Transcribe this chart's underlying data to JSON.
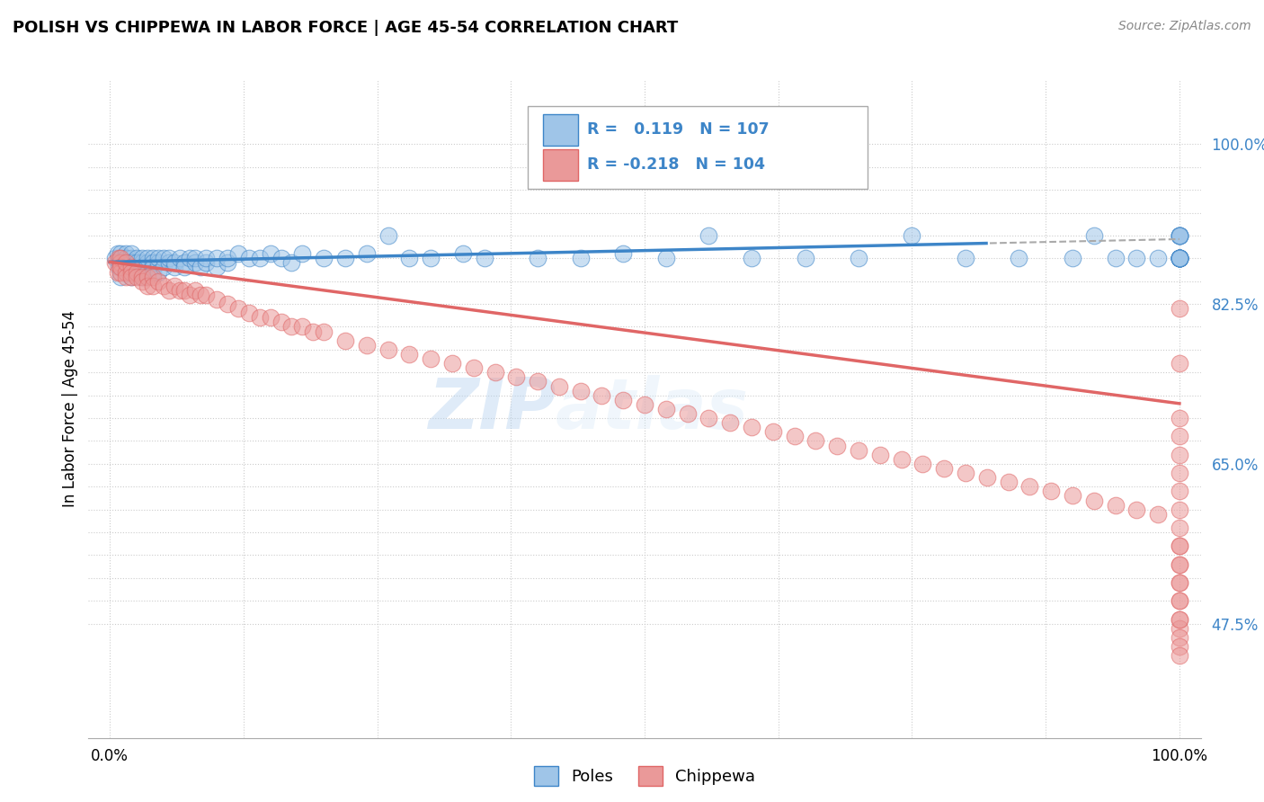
{
  "title": "POLISH VS CHIPPEWA IN LABOR FORCE | AGE 45-54 CORRELATION CHART",
  "source": "Source: ZipAtlas.com",
  "ylabel": "In Labor Force | Age 45-54",
  "xlim": [
    -0.02,
    1.02
  ],
  "ylim": [
    0.35,
    1.07
  ],
  "ytick_positions_right": [
    0.475,
    0.65,
    0.825,
    1.0
  ],
  "ytick_labels_right": [
    "47.5%",
    "65.0%",
    "82.5%",
    "100.0%"
  ],
  "poles_color": "#9fc5e8",
  "chippewa_color": "#ea9999",
  "poles_line_color": "#3d85c8",
  "chippewa_line_color": "#e06666",
  "poles_R": 0.119,
  "poles_N": 107,
  "chippewa_R": -0.218,
  "chippewa_N": 104,
  "watermark_zip": "ZIP",
  "watermark_atlas": "atlas",
  "poles_x": [
    0.005,
    0.007,
    0.008,
    0.009,
    0.01,
    0.01,
    0.01,
    0.01,
    0.01,
    0.015,
    0.015,
    0.015,
    0.015,
    0.015,
    0.015,
    0.02,
    0.02,
    0.02,
    0.02,
    0.02,
    0.02,
    0.02,
    0.025,
    0.025,
    0.025,
    0.025,
    0.03,
    0.03,
    0.03,
    0.03,
    0.03,
    0.035,
    0.035,
    0.035,
    0.04,
    0.04,
    0.04,
    0.04,
    0.045,
    0.045,
    0.045,
    0.05,
    0.05,
    0.055,
    0.055,
    0.06,
    0.06,
    0.065,
    0.07,
    0.07,
    0.075,
    0.08,
    0.08,
    0.085,
    0.09,
    0.09,
    0.1,
    0.1,
    0.11,
    0.11,
    0.12,
    0.13,
    0.14,
    0.15,
    0.16,
    0.17,
    0.18,
    0.2,
    0.22,
    0.24,
    0.26,
    0.28,
    0.3,
    0.33,
    0.35,
    0.4,
    0.44,
    0.48,
    0.52,
    0.56,
    0.6,
    0.65,
    0.7,
    0.75,
    0.8,
    0.85,
    0.9,
    0.92,
    0.94,
    0.96,
    0.98,
    1.0,
    1.0,
    1.0,
    1.0,
    1.0,
    1.0,
    1.0,
    1.0,
    1.0,
    1.0,
    1.0,
    1.0,
    1.0,
    1.0,
    1.0,
    1.0
  ],
  "poles_y": [
    0.875,
    0.88,
    0.865,
    0.87,
    0.875,
    0.88,
    0.87,
    0.865,
    0.855,
    0.875,
    0.87,
    0.865,
    0.88,
    0.875,
    0.86,
    0.875,
    0.88,
    0.87,
    0.865,
    0.86,
    0.855,
    0.87,
    0.875,
    0.87,
    0.865,
    0.86,
    0.87,
    0.875,
    0.86,
    0.855,
    0.865,
    0.87,
    0.875,
    0.86,
    0.875,
    0.87,
    0.865,
    0.86,
    0.87,
    0.875,
    0.86,
    0.875,
    0.865,
    0.87,
    0.875,
    0.865,
    0.87,
    0.875,
    0.87,
    0.865,
    0.875,
    0.87,
    0.875,
    0.865,
    0.87,
    0.875,
    0.865,
    0.875,
    0.87,
    0.875,
    0.88,
    0.875,
    0.875,
    0.88,
    0.875,
    0.87,
    0.88,
    0.875,
    0.875,
    0.88,
    0.9,
    0.875,
    0.875,
    0.88,
    0.875,
    0.875,
    0.875,
    0.88,
    0.875,
    0.9,
    0.875,
    0.875,
    0.875,
    0.9,
    0.875,
    0.875,
    0.875,
    0.9,
    0.875,
    0.875,
    0.875,
    0.875,
    0.9,
    0.875,
    0.9,
    0.875,
    0.875,
    0.9,
    0.875,
    0.875,
    0.9,
    0.875,
    0.875,
    0.875,
    0.9,
    0.875,
    0.875
  ],
  "chippewa_x": [
    0.005,
    0.007,
    0.008,
    0.01,
    0.01,
    0.01,
    0.01,
    0.015,
    0.015,
    0.015,
    0.02,
    0.02,
    0.02,
    0.025,
    0.025,
    0.03,
    0.03,
    0.035,
    0.035,
    0.04,
    0.04,
    0.045,
    0.05,
    0.055,
    0.06,
    0.065,
    0.07,
    0.075,
    0.08,
    0.085,
    0.09,
    0.1,
    0.11,
    0.12,
    0.13,
    0.14,
    0.15,
    0.16,
    0.17,
    0.18,
    0.19,
    0.2,
    0.22,
    0.24,
    0.26,
    0.28,
    0.3,
    0.32,
    0.34,
    0.36,
    0.38,
    0.4,
    0.42,
    0.44,
    0.46,
    0.48,
    0.5,
    0.52,
    0.54,
    0.56,
    0.58,
    0.6,
    0.62,
    0.64,
    0.66,
    0.68,
    0.7,
    0.72,
    0.74,
    0.76,
    0.78,
    0.8,
    0.82,
    0.84,
    0.86,
    0.88,
    0.9,
    0.92,
    0.94,
    0.96,
    0.98,
    1.0,
    1.0,
    1.0,
    1.0,
    1.0,
    1.0,
    1.0,
    1.0,
    1.0,
    1.0,
    1.0,
    1.0,
    1.0,
    1.0,
    1.0,
    1.0,
    1.0,
    1.0,
    1.0,
    1.0,
    1.0,
    1.0,
    1.0
  ],
  "chippewa_y": [
    0.87,
    0.86,
    0.875,
    0.87,
    0.86,
    0.875,
    0.865,
    0.86,
    0.87,
    0.855,
    0.865,
    0.86,
    0.855,
    0.86,
    0.855,
    0.855,
    0.85,
    0.855,
    0.845,
    0.855,
    0.845,
    0.85,
    0.845,
    0.84,
    0.845,
    0.84,
    0.84,
    0.835,
    0.84,
    0.835,
    0.835,
    0.83,
    0.825,
    0.82,
    0.815,
    0.81,
    0.81,
    0.805,
    0.8,
    0.8,
    0.795,
    0.795,
    0.785,
    0.78,
    0.775,
    0.77,
    0.765,
    0.76,
    0.755,
    0.75,
    0.745,
    0.74,
    0.735,
    0.73,
    0.725,
    0.72,
    0.715,
    0.71,
    0.705,
    0.7,
    0.695,
    0.69,
    0.685,
    0.68,
    0.675,
    0.67,
    0.665,
    0.66,
    0.655,
    0.65,
    0.645,
    0.64,
    0.635,
    0.63,
    0.625,
    0.62,
    0.615,
    0.61,
    0.605,
    0.6,
    0.595,
    0.82,
    0.76,
    0.7,
    0.68,
    0.66,
    0.64,
    0.62,
    0.6,
    0.58,
    0.56,
    0.54,
    0.52,
    0.5,
    0.48,
    0.47,
    0.46,
    0.45,
    0.44,
    0.48,
    0.5,
    0.52,
    0.54,
    0.56
  ],
  "grid_y": [
    0.475,
    0.5,
    0.525,
    0.55,
    0.575,
    0.6,
    0.625,
    0.65,
    0.675,
    0.7,
    0.725,
    0.75,
    0.775,
    0.8,
    0.825,
    0.85,
    0.875,
    0.9,
    0.925,
    0.95,
    0.975,
    1.0
  ],
  "grid_x": [
    0.0,
    0.125,
    0.25,
    0.375,
    0.5,
    0.625,
    0.75,
    0.875,
    1.0
  ],
  "poles_trend_intercept": 0.871,
  "poles_trend_slope": 0.025,
  "chippewa_trend_intercept": 0.871,
  "chippewa_trend_slope": -0.155
}
